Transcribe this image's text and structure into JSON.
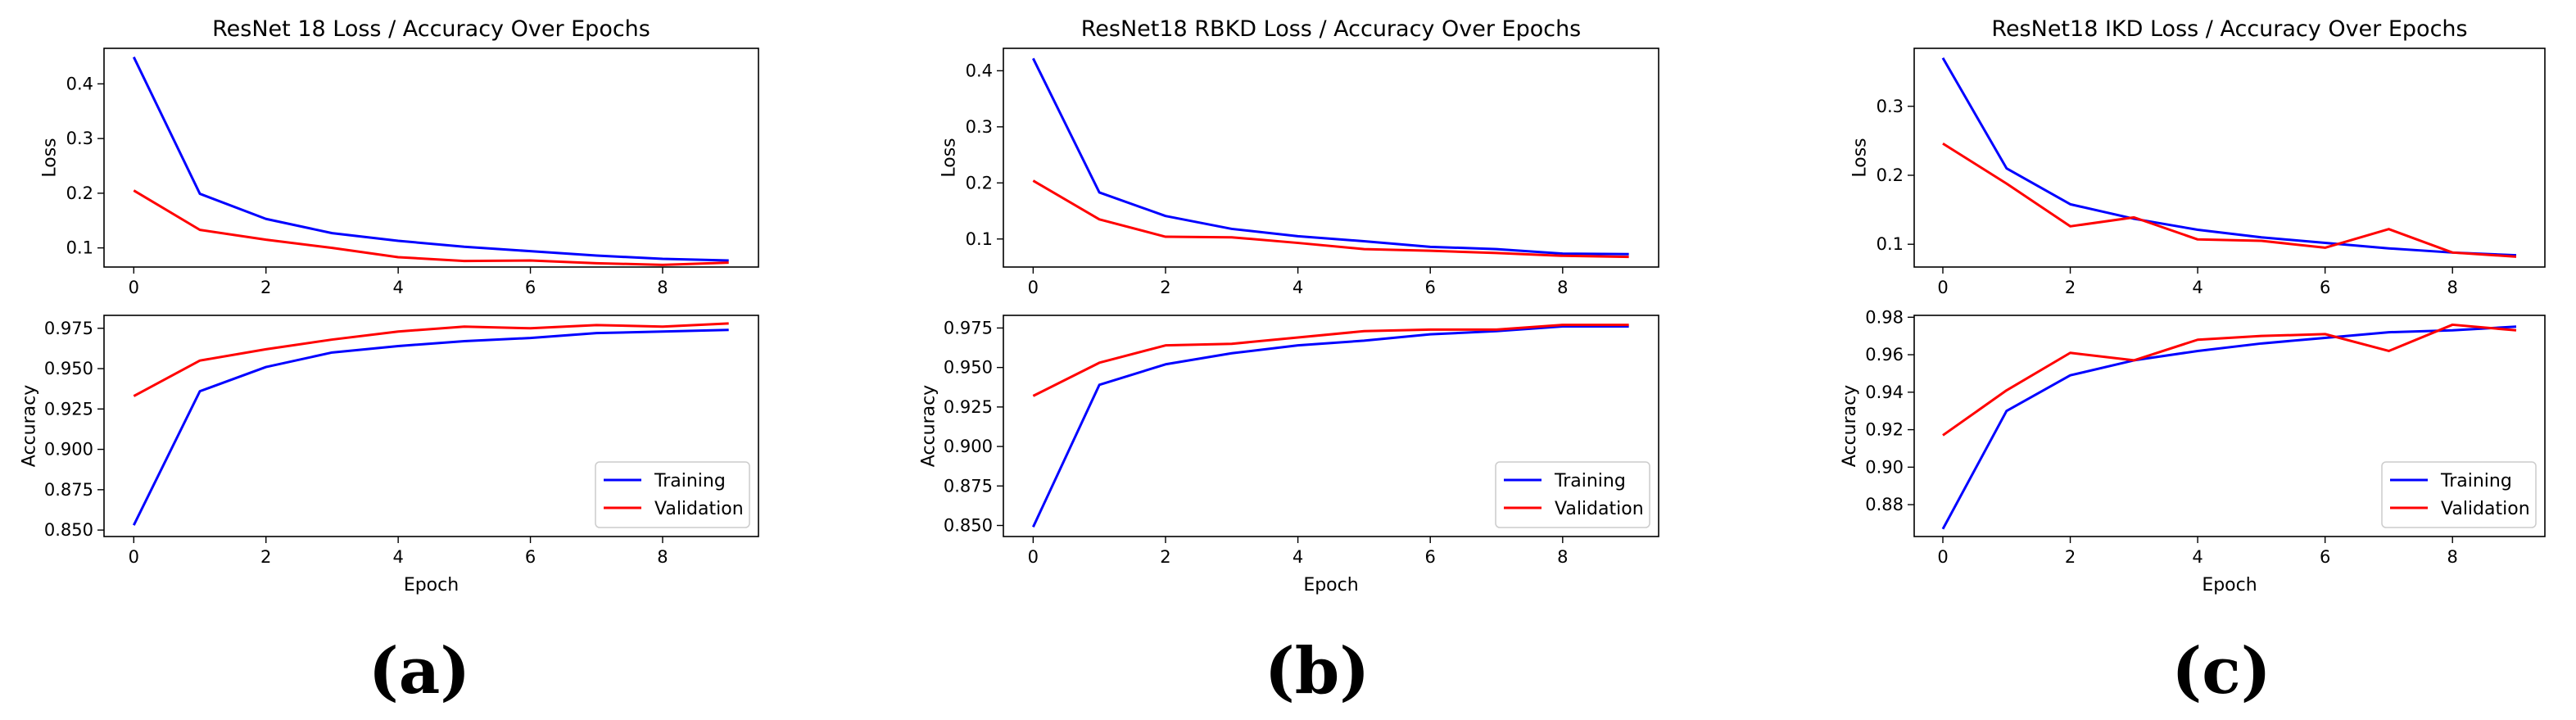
{
  "chart_data": [
    {
      "type": "line",
      "title": "ResNet 18 Loss / Accuracy Over Epochs",
      "panel_label": "(a)",
      "xlabel": "Epoch",
      "x": [
        0,
        1,
        2,
        3,
        4,
        5,
        6,
        7,
        8,
        9
      ],
      "xlim": [
        -0.45,
        9.45
      ],
      "xticks": [
        0,
        2,
        4,
        6,
        8
      ],
      "xtick_labels": [
        "0",
        "2",
        "4",
        "6",
        "8"
      ],
      "loss": {
        "ylabel": "Loss",
        "ylim": [
          0.065,
          0.465
        ],
        "yticks": [
          0.1,
          0.2,
          0.3,
          0.4
        ],
        "ytick_labels": [
          "0.1",
          "0.2",
          "0.3",
          "0.4"
        ],
        "series": [
          {
            "name": "Training",
            "color": "#0000ff",
            "values": [
              0.449,
              0.199,
              0.153,
              0.127,
              0.113,
              0.102,
              0.094,
              0.086,
              0.08,
              0.077
            ]
          },
          {
            "name": "Validation",
            "color": "#ff0000",
            "values": [
              0.205,
              0.133,
              0.115,
              0.1,
              0.083,
              0.076,
              0.077,
              0.072,
              0.069,
              0.073
            ]
          }
        ]
      },
      "accuracy": {
        "ylabel": "Accuracy",
        "ylim": [
          0.846,
          0.983
        ],
        "yticks": [
          0.85,
          0.875,
          0.9,
          0.925,
          0.95,
          0.975
        ],
        "ytick_labels": [
          "0.850",
          "0.875",
          "0.900",
          "0.925",
          "0.950",
          "0.975"
        ],
        "legend": "bottom-right",
        "series": [
          {
            "name": "Training",
            "color": "#0000ff",
            "values": [
              0.853,
              0.936,
              0.951,
              0.96,
              0.964,
              0.967,
              0.969,
              0.972,
              0.973,
              0.974
            ]
          },
          {
            "name": "Validation",
            "color": "#ff0000",
            "values": [
              0.933,
              0.955,
              0.962,
              0.968,
              0.973,
              0.976,
              0.975,
              0.977,
              0.976,
              0.978
            ]
          }
        ]
      }
    },
    {
      "type": "line",
      "title": "ResNet18 RBKD Loss / Accuracy Over Epochs",
      "panel_label": "(b)",
      "xlabel": "Epoch",
      "x": [
        0,
        1,
        2,
        3,
        4,
        5,
        6,
        7,
        8,
        9
      ],
      "xlim": [
        -0.45,
        9.45
      ],
      "xticks": [
        0,
        2,
        4,
        6,
        8
      ],
      "xtick_labels": [
        "0",
        "2",
        "4",
        "6",
        "8"
      ],
      "loss": {
        "ylabel": "Loss",
        "ylim": [
          0.05,
          0.44
        ],
        "yticks": [
          0.1,
          0.2,
          0.3,
          0.4
        ],
        "ytick_labels": [
          "0.1",
          "0.2",
          "0.3",
          "0.4"
        ],
        "series": [
          {
            "name": "Training",
            "color": "#0000ff",
            "values": [
              0.422,
              0.183,
              0.141,
              0.118,
              0.105,
              0.096,
              0.086,
              0.082,
              0.074,
              0.073
            ]
          },
          {
            "name": "Validation",
            "color": "#ff0000",
            "values": [
              0.204,
              0.135,
              0.104,
              0.103,
              0.093,
              0.082,
              0.079,
              0.075,
              0.07,
              0.068
            ]
          }
        ]
      },
      "accuracy": {
        "ylabel": "Accuracy",
        "ylim": [
          0.843,
          0.983
        ],
        "yticks": [
          0.85,
          0.875,
          0.9,
          0.925,
          0.95,
          0.975
        ],
        "ytick_labels": [
          "0.850",
          "0.875",
          "0.900",
          "0.925",
          "0.950",
          "0.975"
        ],
        "legend": "bottom-right",
        "series": [
          {
            "name": "Training",
            "color": "#0000ff",
            "values": [
              0.849,
              0.939,
              0.952,
              0.959,
              0.964,
              0.967,
              0.971,
              0.973,
              0.976,
              0.976
            ]
          },
          {
            "name": "Validation",
            "color": "#ff0000",
            "values": [
              0.932,
              0.953,
              0.964,
              0.965,
              0.969,
              0.973,
              0.974,
              0.974,
              0.977,
              0.977
            ]
          }
        ]
      }
    },
    {
      "type": "line",
      "title": "ResNet18 IKD Loss / Accuracy Over Epochs",
      "panel_label": "(c)",
      "xlabel": "Epoch",
      "x": [
        0,
        1,
        2,
        3,
        4,
        5,
        6,
        7,
        8,
        9
      ],
      "xlim": [
        -0.45,
        9.45
      ],
      "xticks": [
        0,
        2,
        4,
        6,
        8
      ],
      "xtick_labels": [
        "0",
        "2",
        "4",
        "6",
        "8"
      ],
      "loss": {
        "ylabel": "Loss",
        "ylim": [
          0.067,
          0.384
        ],
        "yticks": [
          0.1,
          0.2,
          0.3
        ],
        "ytick_labels": [
          "0.1",
          "0.2",
          "0.3"
        ],
        "series": [
          {
            "name": "Training",
            "color": "#0000ff",
            "values": [
              0.37,
              0.21,
              0.158,
              0.137,
              0.121,
              0.11,
              0.102,
              0.094,
              0.088,
              0.084
            ]
          },
          {
            "name": "Validation",
            "color": "#ff0000",
            "values": [
              0.246,
              0.188,
              0.126,
              0.139,
              0.107,
              0.105,
              0.095,
              0.122,
              0.088,
              0.082
            ]
          }
        ]
      },
      "accuracy": {
        "ylabel": "Accuracy",
        "ylim": [
          0.863,
          0.981
        ],
        "yticks": [
          0.88,
          0.9,
          0.92,
          0.94,
          0.96,
          0.98
        ],
        "ytick_labels": [
          "0.88",
          "0.90",
          "0.92",
          "0.94",
          "0.96",
          "0.98"
        ],
        "legend": "bottom-right",
        "series": [
          {
            "name": "Training",
            "color": "#0000ff",
            "values": [
              0.867,
              0.93,
              0.949,
              0.957,
              0.962,
              0.966,
              0.969,
              0.972,
              0.973,
              0.975
            ]
          },
          {
            "name": "Validation",
            "color": "#ff0000",
            "values": [
              0.917,
              0.941,
              0.961,
              0.957,
              0.968,
              0.97,
              0.971,
              0.962,
              0.976,
              0.973
            ]
          }
        ]
      }
    }
  ]
}
